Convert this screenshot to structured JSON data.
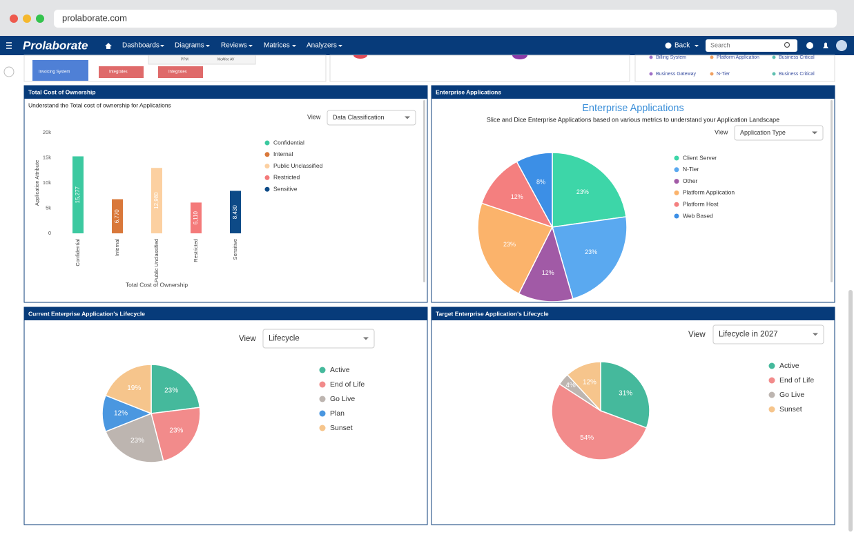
{
  "browser": {
    "url": "prolaborate.com"
  },
  "nav": {
    "logo": "Prolaborate",
    "menus": [
      "Dashboards",
      "Diagrams",
      "Reviews",
      "Matrices",
      "Analyzers"
    ],
    "back": "Back",
    "search_placeholder": "Search"
  },
  "top_strip": {
    "left": [
      "PPM",
      "McAfee AV",
      "Invoicing System",
      "Integrates",
      "Integrates"
    ],
    "right": [
      [
        "Billing System",
        "Platform Application",
        "Business Critical"
      ],
      [
        "Business Gateway",
        "N-Tier",
        "Business Critical"
      ]
    ]
  },
  "chart_data": [
    {
      "type": "bar",
      "panel_title": "Total Cost of Ownership",
      "subtitle": "Understand the Total cost of ownership for Applications",
      "view_label": "View",
      "view_value": "Data Classification",
      "categories": [
        "Confidential",
        "Internal",
        "Public Unclassified",
        "Restricted",
        "Sensitive"
      ],
      "values": [
        15277,
        6770,
        12980,
        6110,
        8430
      ],
      "value_labels": [
        "15,277",
        "6,770",
        "12,980",
        "6,110",
        "8,430"
      ],
      "colors": [
        "#3cc9a0",
        "#d9783a",
        "#fcd0a1",
        "#f47a7a",
        "#0d4a87"
      ],
      "ylim": [
        0,
        20000
      ],
      "yticks": [
        0,
        {
          "value": 5000,
          "label": "5k"
        },
        {
          "value": 10000,
          "label": "10k"
        },
        {
          "value": 15000,
          "label": "15k"
        },
        {
          "value": 20000,
          "label": "20k"
        }
      ],
      "ylabel": "Application Attribute",
      "xlabel": "Total Cost of Ownership"
    },
    {
      "type": "pie",
      "panel_title": "Enterprise Applications",
      "title": "Enterprise Applications",
      "subtitle": "Slice and Dice Enterprise Applications based on various metrics to understand your Application Landscape",
      "view_label": "View",
      "view_value": "Application Type",
      "categories": [
        "Client Server",
        "N-Tier",
        "Other",
        "Platform Application",
        "Platform Host",
        "Web Based"
      ],
      "values": [
        23,
        23,
        12,
        23,
        12,
        8
      ],
      "value_labels": [
        "23%",
        "23%",
        "12%",
        "23%",
        "12%",
        "8%"
      ],
      "colors": [
        "#3dd6a8",
        "#5aa9f0",
        "#a15aa6",
        "#fbb36b",
        "#f47f7f",
        "#3c8fe6"
      ]
    },
    {
      "type": "pie",
      "panel_title": "Current Enterprise Application's Lifecycle",
      "view_label": "View",
      "view_value": "Lifecycle",
      "categories": [
        "Active",
        "End of Life",
        "Go Live",
        "Plan",
        "Sunset"
      ],
      "values": [
        23,
        23,
        23,
        12,
        19
      ],
      "value_labels": [
        "23%",
        "23%",
        "23%",
        "12%",
        "19%"
      ],
      "colors": [
        "#45b99c",
        "#f28b8b",
        "#bdb5b0",
        "#4a97e0",
        "#f6c58c"
      ]
    },
    {
      "type": "pie",
      "panel_title": "Target Enterprise Application's Lifecycle",
      "view_label": "View",
      "view_value": "Lifecycle in 2027",
      "categories": [
        "Active",
        "End of Life",
        "Go Live",
        "Sunset"
      ],
      "values": [
        31,
        54,
        4,
        12
      ],
      "value_labels": [
        "31%",
        "54%",
        "4%",
        "12%"
      ],
      "colors": [
        "#45b99c",
        "#f28b8b",
        "#bdb5b0",
        "#f6c58c"
      ]
    }
  ]
}
